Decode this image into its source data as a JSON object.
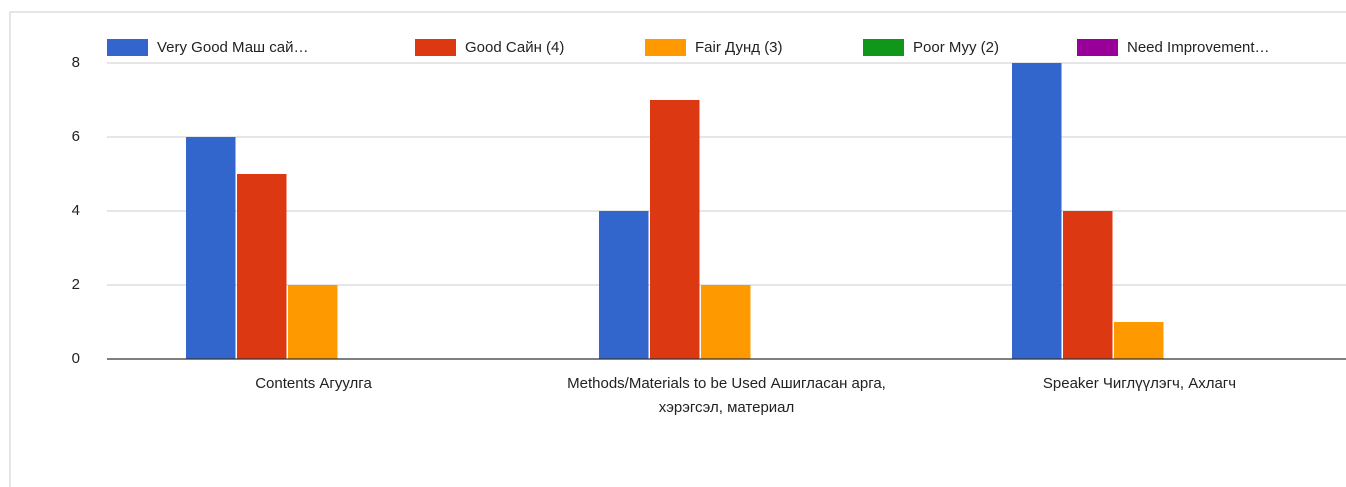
{
  "chart_data": {
    "type": "bar",
    "categories": [
      "Contents Агуулга",
      "Methods/Materials to be Used Ашигласан арга, хэрэгсэл, материал",
      "Speaker Чиглүүлэгч, Ахлагч"
    ],
    "series": [
      {
        "name": "Very Good Маш сай…",
        "color": "#3366cc",
        "values": [
          6,
          4,
          8
        ]
      },
      {
        "name": "Good Сайн (4)",
        "color": "#dc3912",
        "values": [
          5,
          7,
          4
        ]
      },
      {
        "name": "Fair Дунд (3)",
        "color": "#ff9900",
        "values": [
          2,
          2,
          1
        ]
      },
      {
        "name": "Poor Муу (2)",
        "color": "#109618",
        "values": [
          0,
          0,
          0
        ]
      },
      {
        "name": "Need Improvement…",
        "color": "#990099",
        "values": [
          0,
          0,
          0
        ]
      }
    ],
    "ylim": [
      0,
      8
    ],
    "yticks": [
      0,
      2,
      4,
      6,
      8
    ],
    "grid": true,
    "legend": "top"
  }
}
